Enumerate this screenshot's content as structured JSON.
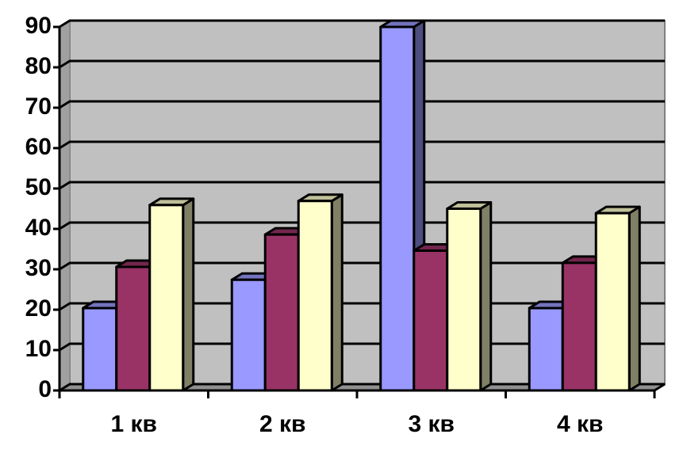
{
  "chart_data": {
    "type": "bar",
    "categories": [
      "1 кв",
      "2 кв",
      "3 кв",
      "4 кв"
    ],
    "series": [
      {
        "color": "#9999ff",
        "values": [
          20.4,
          27.4,
          90,
          20.4
        ]
      },
      {
        "color": "#993366",
        "values": [
          30.6,
          38.6,
          34.6,
          31.6
        ]
      },
      {
        "color": "#ffffcc",
        "values": [
          45.9,
          46.9,
          45,
          43.9
        ]
      }
    ],
    "ylim": [
      0,
      90
    ],
    "yticks": [
      0,
      10,
      20,
      30,
      40,
      50,
      60,
      70,
      80,
      90
    ],
    "grid": true
  }
}
